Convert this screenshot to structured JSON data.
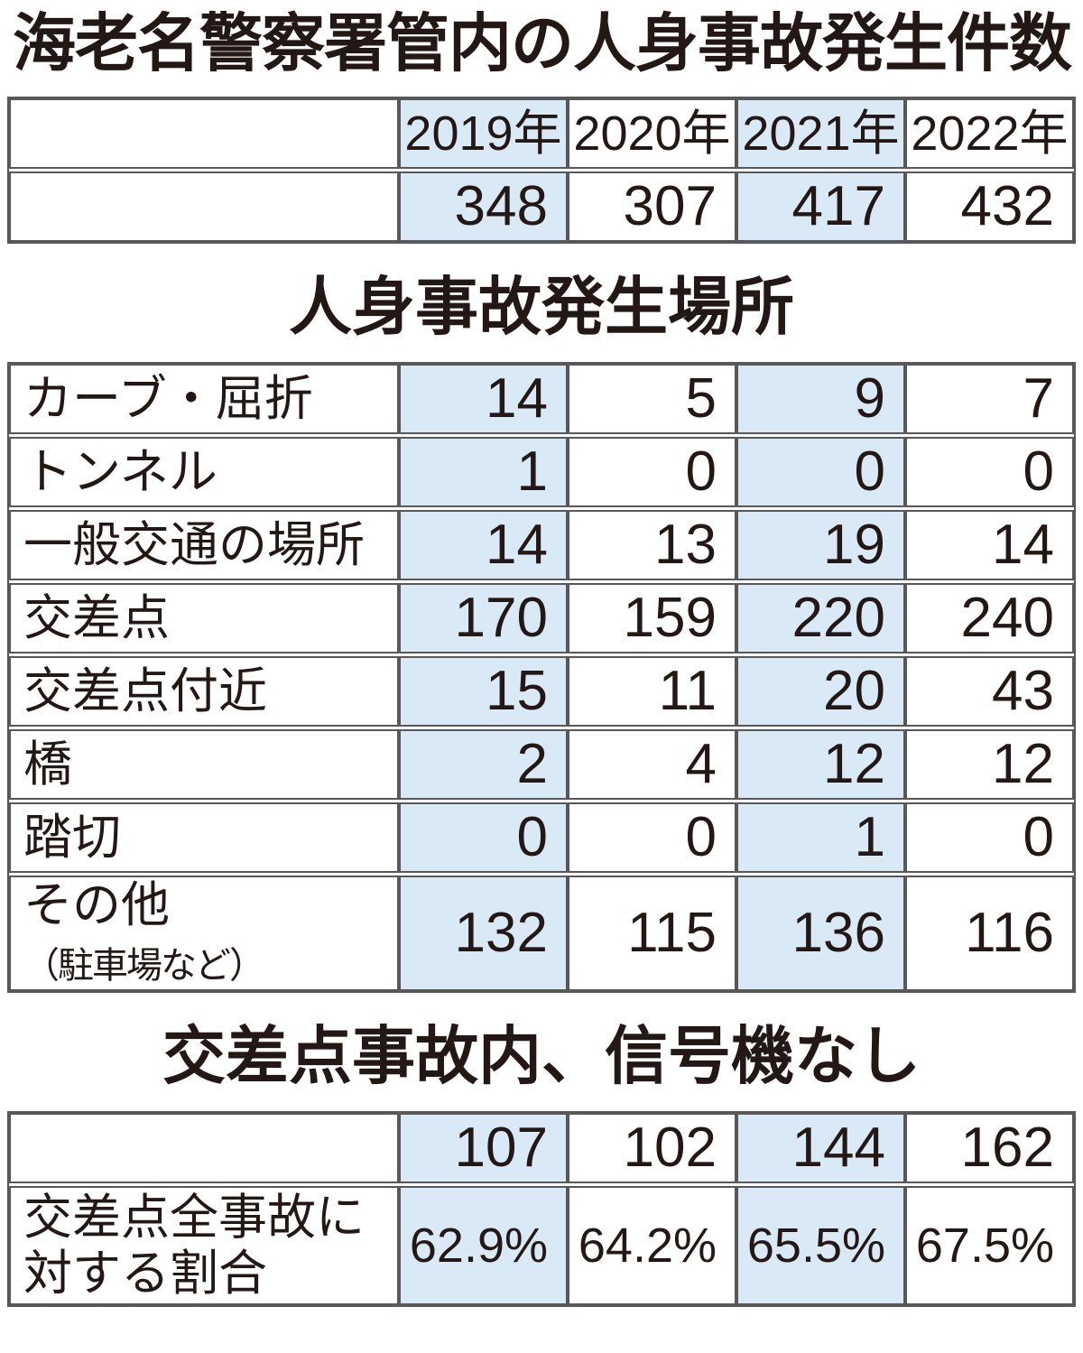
{
  "title": "海老名警察署管内の人身事故発生件数",
  "colors": {
    "highlight_column": "#d9eaf6",
    "table_border": "#595757",
    "text": "#231815"
  },
  "highlighted_year_columns": [
    "2019年",
    "2021年"
  ],
  "locations_other_label": {
    "main": "その他",
    "note": "（駐車場など）"
  },
  "chart_data": [
    {
      "type": "table",
      "title": "海老名警察署管内の人身事故発生件数",
      "columns": [
        "2019年",
        "2020年",
        "2021年",
        "2022年"
      ],
      "rows": [
        {
          "label": "",
          "values": [
            348,
            307,
            417,
            432
          ]
        }
      ]
    },
    {
      "type": "table",
      "title": "人身事故発生場所",
      "columns": [
        "2019年",
        "2020年",
        "2021年",
        "2022年"
      ],
      "rows": [
        {
          "label": "カーブ・屈折",
          "values": [
            14,
            5,
            9,
            7
          ]
        },
        {
          "label": "トンネル",
          "values": [
            1,
            0,
            0,
            0
          ]
        },
        {
          "label": "一般交通の場所",
          "values": [
            14,
            13,
            19,
            14
          ]
        },
        {
          "label": "交差点",
          "values": [
            170,
            159,
            220,
            240
          ],
          "bold": true
        },
        {
          "label": "交差点付近",
          "values": [
            15,
            11,
            20,
            43
          ]
        },
        {
          "label": "橋",
          "values": [
            2,
            4,
            12,
            12
          ]
        },
        {
          "label": "踏切",
          "values": [
            0,
            0,
            1,
            0
          ]
        },
        {
          "label": "その他（駐車場など）",
          "values": [
            132,
            115,
            136,
            116
          ]
        }
      ]
    },
    {
      "type": "table",
      "title": "交差点事故内、信号機なし",
      "columns": [
        "2019年",
        "2020年",
        "2021年",
        "2022年"
      ],
      "rows": [
        {
          "label": "",
          "values": [
            107,
            102,
            144,
            162
          ],
          "bold_last": true
        },
        {
          "label": "交差点全事故に対する割合",
          "values": [
            "62.9%",
            "64.2%",
            "65.5%",
            "67.5%"
          ],
          "bold_last": true
        }
      ]
    }
  ]
}
